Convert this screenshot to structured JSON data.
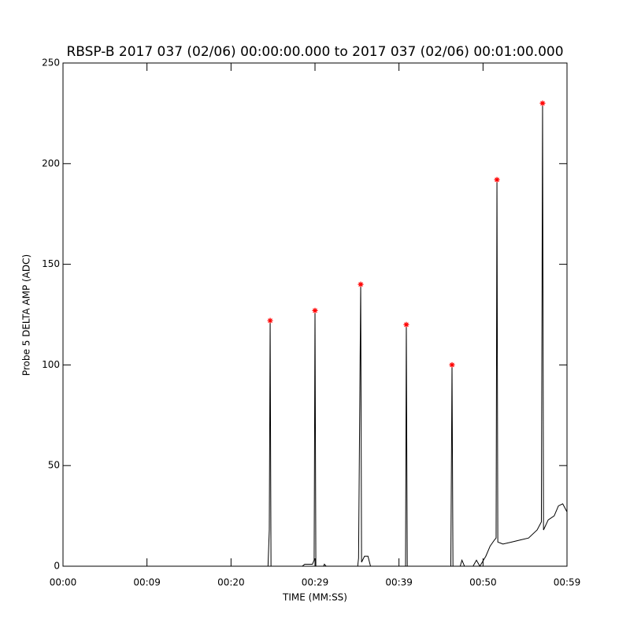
{
  "chart_data": {
    "type": "line",
    "title": "RBSP-B 2017 037 (02/06) 00:00:00.000 to 2017 037 (02/06) 00:01:00.000",
    "xlabel": "TIME (MM:SS)",
    "ylabel": "Probe 5 DELTA AMP (ADC)",
    "xlim": [
      0,
      59
    ],
    "ylim": [
      0,
      250
    ],
    "xticks": [
      {
        "value": 0,
        "label": "00:00"
      },
      {
        "value": 9.83,
        "label": "00:09"
      },
      {
        "value": 19.67,
        "label": "00:20"
      },
      {
        "value": 29.5,
        "label": "00:29"
      },
      {
        "value": 39.33,
        "label": "00:39"
      },
      {
        "value": 49.17,
        "label": "00:50"
      },
      {
        "value": 59,
        "label": "00:59"
      }
    ],
    "yticks": [
      0,
      50,
      100,
      150,
      200,
      250
    ],
    "series": [
      {
        "style": "line",
        "color": "#000000",
        "x": [
          0,
          24.0,
          24.15,
          24.25,
          24.35,
          28.0,
          28.3,
          29.2,
          29.4,
          29.5,
          29.6,
          30.5,
          30.6,
          30.8,
          34.5,
          34.6,
          34.85,
          34.95,
          35.3,
          35.7,
          36.0,
          40.1,
          40.19,
          40.3,
          45.4,
          45.54,
          45.65,
          46.5,
          46.7,
          47.0,
          48.0,
          48.4,
          48.8,
          49.5,
          50.0,
          50.5,
          50.7,
          50.8,
          50.9,
          51.5,
          52.5,
          53.5,
          54.5,
          55.5,
          56.0,
          56.14,
          56.25,
          56.8,
          57.5,
          58.0,
          58.5,
          59
        ],
        "values": [
          0,
          0,
          18,
          122,
          0,
          0,
          1,
          1,
          3,
          127,
          0,
          0,
          1,
          0,
          0,
          4,
          140,
          2,
          5,
          5,
          0,
          0,
          120,
          0,
          0,
          100,
          0,
          0,
          3,
          0,
          0,
          3,
          0,
          5,
          10,
          13,
          14,
          192,
          12,
          11,
          12,
          13,
          14,
          18,
          22,
          230,
          18,
          23,
          25,
          30,
          31,
          27
        ]
      },
      {
        "style": "star",
        "color": "#ff0000",
        "x": [
          24.25,
          29.5,
          34.85,
          40.19,
          45.54,
          50.8,
          56.14
        ],
        "values": [
          122,
          127,
          140,
          120,
          100,
          192,
          230
        ]
      }
    ]
  }
}
